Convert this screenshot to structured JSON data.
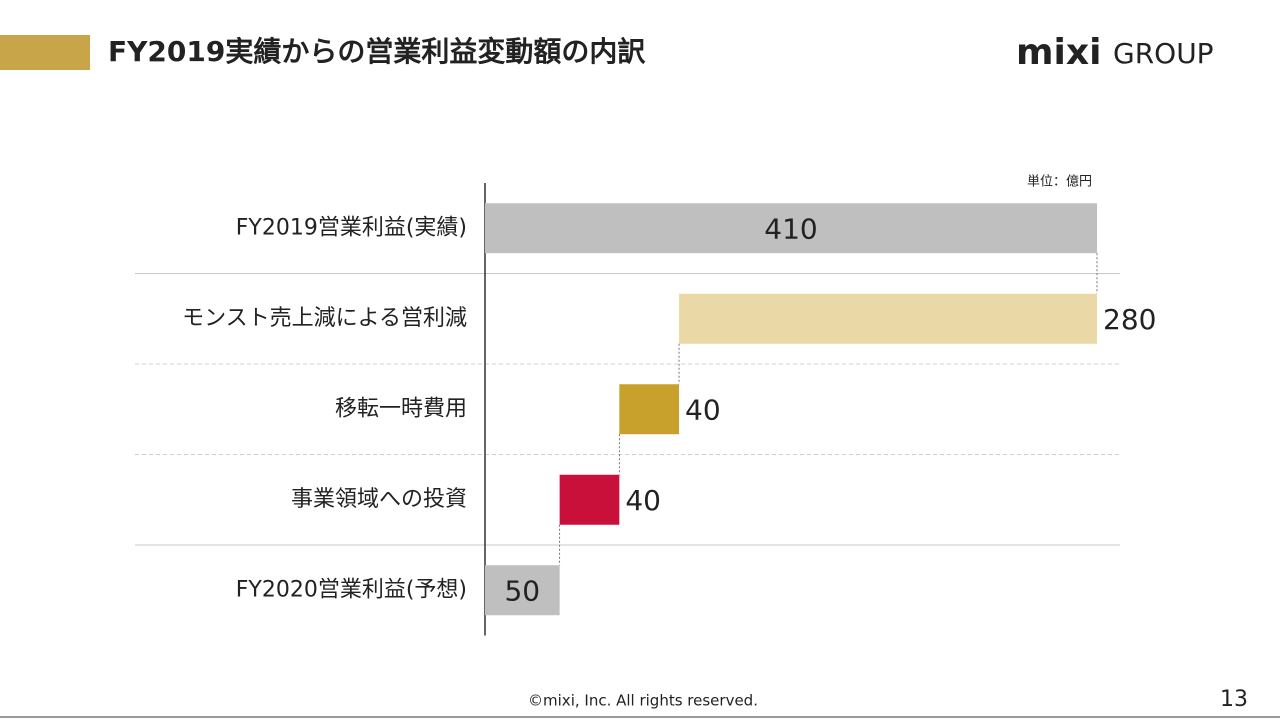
{
  "slide": {
    "logo": [
      "mixi",
      "GROUP"
    ],
    "copyright": "©mixi, Inc. All rights reserved.",
    "page": 13
  },
  "chart_data": {
    "type": "waterfall",
    "title": "FY2019実績からの営業利益変動額の内訳",
    "unit_label": "単位：億円",
    "categories": [
      "FY2019営業利益(実績)",
      "モンスト売上減による営利減",
      "移転一時費用",
      "事業領域への投資",
      "FY2020営業利益(予想)"
    ],
    "values": [
      410,
      280,
      40,
      40,
      50
    ],
    "measures": [
      "total",
      "decrease",
      "decrease",
      "decrease",
      "total"
    ],
    "colors": [
      "#bfbfbf",
      "#ead9a6",
      "#c8a02c",
      "#c8103a",
      "#bfbfbf"
    ]
  }
}
